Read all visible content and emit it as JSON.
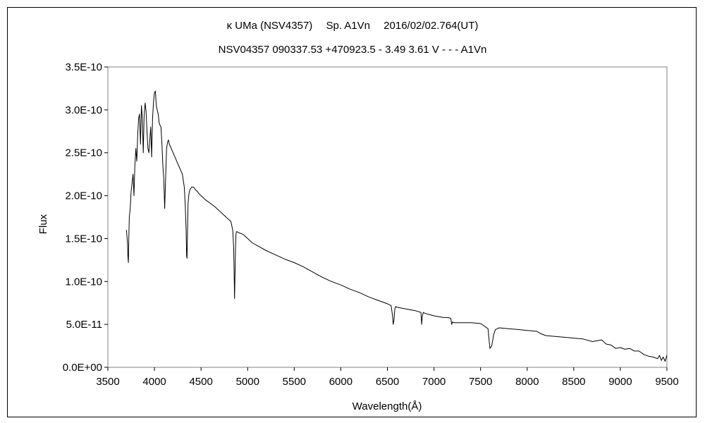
{
  "chart_data": {
    "type": "line",
    "title": "κ UMa (NSV4357)　 Sp. A1Vn　 2016/02/02.764(UT)",
    "subtitle": "NSV04357 090337.53 +470923.5 - 3.49 3.61 V - - - A1Vn",
    "xlabel": "Wavelength(Å)",
    "ylabel": "Flux",
    "xlim": [
      3500,
      9500
    ],
    "ylim": [
      0,
      3.5e-10
    ],
    "x_ticks": [
      3500,
      4000,
      4500,
      5000,
      5500,
      6000,
      6500,
      7000,
      7500,
      8000,
      8500,
      9000,
      9500
    ],
    "x_tick_labels": [
      "3500",
      "4000",
      "4500",
      "5000",
      "5500",
      "6000",
      "6500",
      "7000",
      "7500",
      "8000",
      "8500",
      "9000",
      "9500"
    ],
    "y_ticks": [
      0,
      5e-11,
      1e-10,
      1.5e-10,
      2e-10,
      2.5e-10,
      3e-10,
      3.5e-10
    ],
    "y_tick_labels": [
      "0.0E+00",
      "5.0E-11",
      "1.0E-10",
      "1.5E-10",
      "2.0E-10",
      "2.5E-10",
      "3.0E-10",
      "3.5E-10"
    ],
    "grid": false,
    "legend": "none",
    "line_color": "#000000",
    "series": [
      {
        "x": [
          3700,
          3710,
          3715,
          3720,
          3725,
          3730,
          3740,
          3750,
          3760,
          3770,
          3780,
          3790,
          3800,
          3810,
          3820,
          3830,
          3840,
          3850,
          3860,
          3870,
          3880,
          3890,
          3900,
          3910,
          3920,
          3930,
          3940,
          3950,
          3960,
          3970,
          3980,
          3990,
          4000,
          4010,
          4020,
          4030,
          4040,
          4050,
          4060,
          4070,
          4080,
          4090,
          4100,
          4110,
          4120,
          4130,
          4140,
          4150,
          4160,
          4180,
          4200,
          4220,
          4240,
          4260,
          4280,
          4300,
          4320,
          4330,
          4340,
          4345,
          4350,
          4355,
          4360,
          4370,
          4380,
          4400,
          4420,
          4440,
          4460,
          4480,
          4500,
          4550,
          4600,
          4650,
          4700,
          4750,
          4800,
          4820,
          4840,
          4850,
          4855,
          4860,
          4865,
          4870,
          4875,
          4880,
          4890,
          4900,
          4950,
          5000,
          5050,
          5100,
          5200,
          5300,
          5400,
          5500,
          5600,
          5700,
          5800,
          5900,
          6000,
          6100,
          6200,
          6300,
          6400,
          6500,
          6540,
          6555,
          6562,
          6570,
          6580,
          6590,
          6600,
          6700,
          6800,
          6860,
          6868,
          6875,
          6885,
          6900,
          7000,
          7100,
          7150,
          7180,
          7190,
          7200,
          7210,
          7230,
          7300,
          7400,
          7500,
          7580,
          7600,
          7620,
          7640,
          7660,
          7680,
          7700,
          7800,
          7900,
          8000,
          8100,
          8150,
          8200,
          8300,
          8400,
          8500,
          8600,
          8700,
          8800,
          8850,
          8900,
          8950,
          9000,
          9050,
          9100,
          9150,
          9200,
          9250,
          9300,
          9350,
          9400,
          9420,
          9440,
          9460,
          9480,
          9500
        ],
        "y": [
          1.6e-10,
          1.45e-10,
          1.3e-10,
          1.22e-10,
          1.5e-10,
          1.75e-10,
          1.85e-10,
          2.05e-10,
          2.15e-10,
          2.25e-10,
          2e-10,
          2.35e-10,
          2.55e-10,
          2.4e-10,
          2.7e-10,
          2.9e-10,
          2.95e-10,
          2.6e-10,
          3.05e-10,
          2.9e-10,
          2.5e-10,
          2.95e-10,
          3.08e-10,
          2.98e-10,
          2.75e-10,
          2.55e-10,
          2.5e-10,
          2.65e-10,
          2.8e-10,
          2.45e-10,
          2.9e-10,
          3.1e-10,
          3.2e-10,
          3.22e-10,
          3.05e-10,
          3e-10,
          2.95e-10,
          2.85e-10,
          2.82e-10,
          2.8e-10,
          2.6e-10,
          2.35e-10,
          2.2e-10,
          1.85e-10,
          2.2e-10,
          2.55e-10,
          2.62e-10,
          2.65e-10,
          2.6e-10,
          2.55e-10,
          2.5e-10,
          2.45e-10,
          2.4e-10,
          2.35e-10,
          2.3e-10,
          2.25e-10,
          2.1e-10,
          1.9e-10,
          1.6e-10,
          1.3e-10,
          1.27e-10,
          1.6e-10,
          1.9e-10,
          2.02e-10,
          2.07e-10,
          2.1e-10,
          2.1e-10,
          2.07e-10,
          2.05e-10,
          2.02e-10,
          2e-10,
          1.95e-10,
          1.91e-10,
          1.87e-10,
          1.82e-10,
          1.77e-10,
          1.72e-10,
          1.7e-10,
          1.6e-10,
          1.4e-10,
          1.1e-10,
          8e-11,
          1.1e-10,
          1.4e-10,
          1.55e-10,
          1.58e-10,
          1.58e-10,
          1.57e-10,
          1.55e-10,
          1.5e-10,
          1.45e-10,
          1.42e-10,
          1.36e-10,
          1.31e-10,
          1.26e-10,
          1.22e-10,
          1.17e-10,
          1.11e-10,
          1.05e-10,
          1e-10,
          9.6e-11,
          9.1e-11,
          8.7e-11,
          8.2e-11,
          7.8e-11,
          7.4e-11,
          7.2e-11,
          6e-11,
          5e-11,
          5.5e-11,
          6.8e-11,
          7.1e-11,
          7e-11,
          6.8e-11,
          6.6e-11,
          6.4e-11,
          5e-11,
          6e-11,
          6.4e-11,
          6.3e-11,
          6e-11,
          5.8e-11,
          5.8e-11,
          5.7e-11,
          5e-11,
          5.3e-11,
          5.2e-11,
          5.2e-11,
          5.2e-11,
          5.2e-11,
          5.1e-11,
          4.5e-11,
          2.2e-11,
          2.5e-11,
          3.8e-11,
          4.4e-11,
          4.5e-11,
          4.6e-11,
          4.5e-11,
          4.4e-11,
          4.3e-11,
          4.2e-11,
          3.9e-11,
          3.7e-11,
          3.6e-11,
          3.5e-11,
          3.4e-11,
          3.3e-11,
          3e-11,
          3.2e-11,
          2.7e-11,
          2.6e-11,
          2.2e-11,
          2.3e-11,
          2.1e-11,
          2.2e-11,
          1.9e-11,
          1.9e-11,
          1.5e-11,
          1.3e-11,
          1.2e-11,
          1e-11,
          1.4e-11,
          8e-12,
          1.2e-11,
          7e-12,
          1.4e-11
        ]
      }
    ]
  }
}
